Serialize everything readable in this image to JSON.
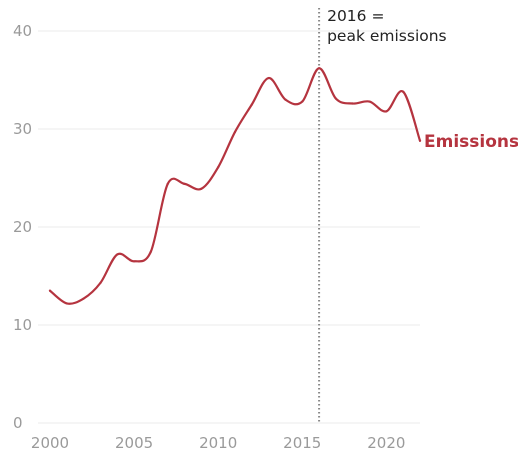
{
  "chart_data": {
    "type": "line",
    "title": "",
    "xlabel": "",
    "ylabel": "",
    "xlim": [
      2000,
      2022
    ],
    "ylim": [
      0,
      40
    ],
    "grid": true,
    "x_ticks": [
      2000,
      2005,
      2010,
      2015,
      2020
    ],
    "y_ticks": [
      0,
      10,
      20,
      30,
      40
    ],
    "series": [
      {
        "name": "Emissions",
        "color": "#b5343f",
        "x": [
          2000,
          2001,
          2002,
          2003,
          2004,
          2005,
          2006,
          2007,
          2008,
          2009,
          2010,
          2011,
          2012,
          2013,
          2014,
          2015,
          2016,
          2017,
          2018,
          2019,
          2020,
          2021,
          2022
        ],
        "values": [
          13.5,
          12.2,
          12.7,
          14.3,
          17.2,
          16.5,
          17.5,
          24.4,
          24.4,
          23.9,
          26.1,
          29.7,
          32.5,
          35.2,
          33.0,
          32.8,
          36.2,
          33.1,
          32.6,
          32.8,
          31.8,
          33.8,
          28.8
        ]
      }
    ],
    "annotations": [
      {
        "x": 2016,
        "line_style": "dotted",
        "line_color": "#888888",
        "text_lines": [
          "2016 =",
          "peak emissions"
        ]
      }
    ]
  }
}
